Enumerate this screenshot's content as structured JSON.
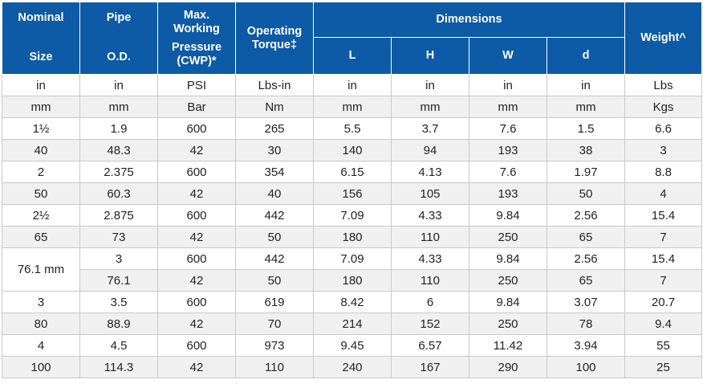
{
  "headers": {
    "nominal": "Nominal",
    "size": "Size",
    "pipe": "Pipe",
    "od": "O.D.",
    "max": "Max.",
    "working": "Working",
    "pressure": "Pressure",
    "cwp": "(CWP)*",
    "operating": "Operating",
    "torque": "Torque‡",
    "dimensions": "Dimensions",
    "l": "L",
    "h": "H",
    "w": "W",
    "d": "d",
    "weight": "Weight^"
  },
  "units": [
    [
      "in",
      "in",
      "PSI",
      "Lbs-in",
      "in",
      "in",
      "in",
      "in",
      "Lbs"
    ],
    [
      "mm",
      "mm",
      "Bar",
      "Nm",
      "mm",
      "mm",
      "mm",
      "mm",
      "Kgs"
    ]
  ],
  "rows_a": [
    [
      "1½",
      "1.9",
      "600",
      "265",
      "5.5",
      "3.7",
      "7.6",
      "1.5",
      "6.6"
    ],
    [
      "40",
      "48.3",
      "42",
      "30",
      "140",
      "94",
      "193",
      "38",
      "3"
    ],
    [
      "2",
      "2.375",
      "600",
      "354",
      "6.15",
      "4.13",
      "7.6",
      "1.97",
      "8.8"
    ],
    [
      "50",
      "60.3",
      "42",
      "40",
      "156",
      "105",
      "193",
      "50",
      "4"
    ],
    [
      "2½",
      "2.875",
      "600",
      "442",
      "7.09",
      "4.33",
      "9.84",
      "2.56",
      "15.4"
    ],
    [
      "65",
      "73",
      "42",
      "50",
      "180",
      "110",
      "250",
      "65",
      "7"
    ]
  ],
  "merged": {
    "size": "76.1 mm",
    "rows": [
      [
        "3",
        "600",
        "442",
        "7.09",
        "4.33",
        "9.84",
        "2.56",
        "15.4"
      ],
      [
        "76.1",
        "42",
        "50",
        "180",
        "110",
        "250",
        "65",
        "7"
      ]
    ]
  },
  "rows_b": [
    [
      "3",
      "3.5",
      "600",
      "619",
      "8.42",
      "6",
      "9.84",
      "3.07",
      "20.7"
    ],
    [
      "80",
      "88.9",
      "42",
      "70",
      "214",
      "152",
      "250",
      "78",
      "9.4"
    ],
    [
      "4",
      "4.5",
      "600",
      "973",
      "9.45",
      "6.57",
      "11.42",
      "3.94",
      "55"
    ],
    [
      "100",
      "114.3",
      "42",
      "110",
      "240",
      "167",
      "290",
      "100",
      "25"
    ]
  ]
}
